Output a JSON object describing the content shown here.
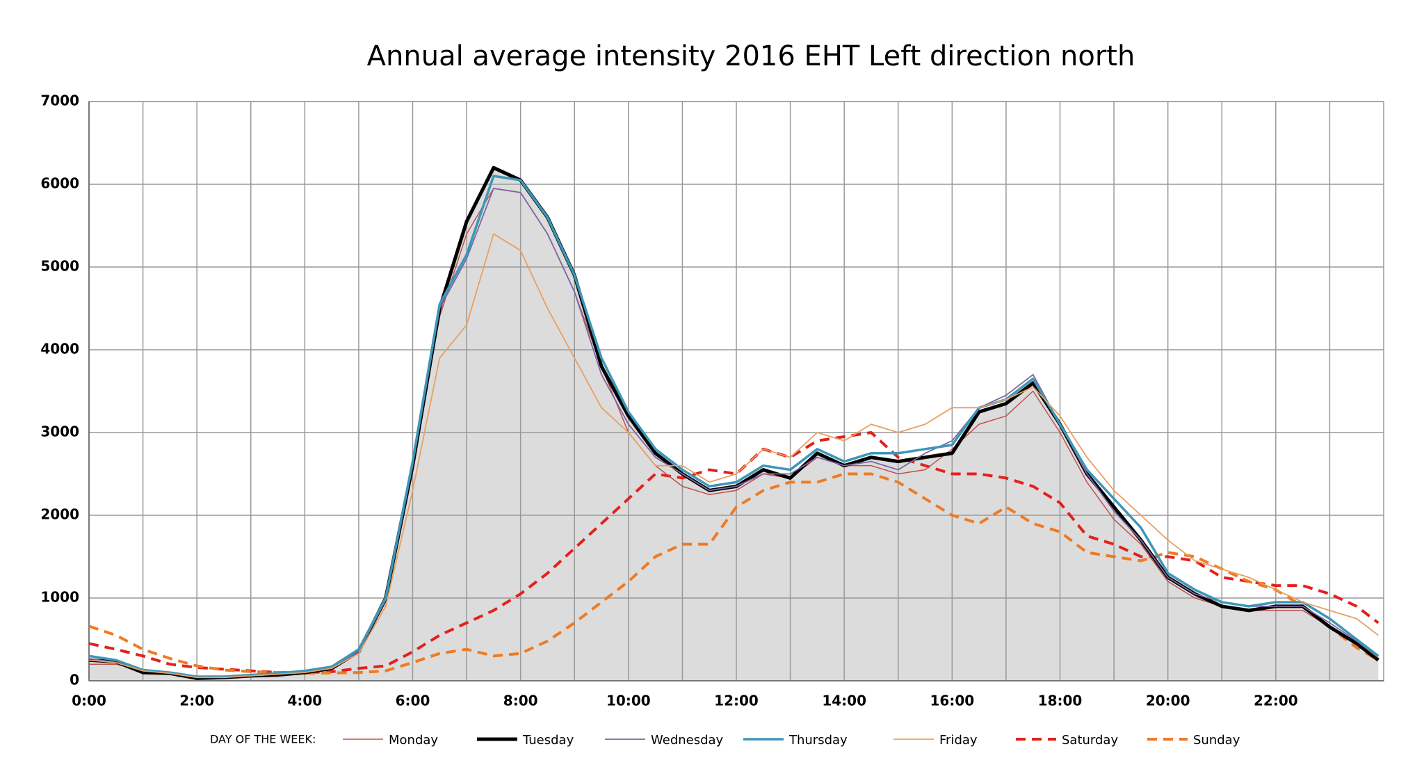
{
  "chart_data": {
    "type": "line",
    "title": "Annual average intensity 2016 EHT Left direction north",
    "legend_title": "DAY OF THE WEEK:",
    "legend": "bottom",
    "grid": true,
    "xlim": [
      0,
      24
    ],
    "ylim": [
      0,
      7000
    ],
    "yticks": [
      0,
      1000,
      2000,
      3000,
      4000,
      5000,
      6000,
      7000
    ],
    "xticks": [
      {
        "value": 0,
        "label": "0:00"
      },
      {
        "value": 2,
        "label": "2:00"
      },
      {
        "value": 4,
        "label": "4:00"
      },
      {
        "value": 6,
        "label": "6:00"
      },
      {
        "value": 8,
        "label": "8:00"
      },
      {
        "value": 10,
        "label": "10:00"
      },
      {
        "value": 12,
        "label": "12:00"
      },
      {
        "value": 14,
        "label": "14:00"
      },
      {
        "value": 16,
        "label": "16:00"
      },
      {
        "value": 18,
        "label": "18:00"
      },
      {
        "value": 20,
        "label": "20:00"
      },
      {
        "value": 22,
        "label": "22:00"
      }
    ],
    "xgrid": [
      1,
      3,
      5,
      7,
      9,
      11,
      13,
      15,
      17,
      19,
      21,
      23
    ],
    "x": [
      0,
      0.5,
      1,
      1.5,
      2,
      2.5,
      3,
      3.5,
      4,
      4.5,
      5,
      5.5,
      6,
      6.5,
      7,
      7.5,
      8,
      8.5,
      9,
      9.5,
      10,
      10.5,
      11,
      11.5,
      12,
      12.5,
      13,
      13.5,
      14,
      14.5,
      15,
      15.5,
      16,
      16.5,
      17,
      17.5,
      18,
      18.5,
      19,
      19.5,
      20,
      20.5,
      21,
      21.5,
      22,
      22.5,
      23,
      23.5,
      23.9
    ],
    "series": [
      {
        "name": "Monday",
        "color": "#c0504d",
        "width": 1.5,
        "dash": false,
        "values": [
          200,
          200,
          120,
          90,
          40,
          40,
          60,
          80,
          100,
          160,
          350,
          950,
          2600,
          4400,
          5400,
          5950,
          5900,
          5400,
          4700,
          3800,
          3000,
          2600,
          2350,
          2250,
          2300,
          2500,
          2450,
          2700,
          2600,
          2600,
          2500,
          2550,
          2800,
          3100,
          3200,
          3500,
          3000,
          2400,
          1950,
          1650,
          1200,
          1000,
          900,
          850,
          850,
          850,
          650,
          450,
          250
        ]
      },
      {
        "name": "Tuesday",
        "color": "#000000",
        "width": 5,
        "dash": false,
        "area": "#dcdcdc",
        "values": [
          250,
          230,
          100,
          90,
          30,
          40,
          60,
          70,
          100,
          150,
          350,
          1000,
          2600,
          4500,
          5550,
          6200,
          6050,
          5600,
          4900,
          3800,
          3200,
          2750,
          2500,
          2300,
          2350,
          2550,
          2450,
          2750,
          2600,
          2700,
          2650,
          2700,
          2750,
          3250,
          3350,
          3600,
          3100,
          2500,
          2100,
          1700,
          1250,
          1050,
          900,
          850,
          900,
          900,
          650,
          450,
          250
        ]
      },
      {
        "name": "Wednesday",
        "color": "#8064a2",
        "width": 1.8,
        "dash": false,
        "values": [
          270,
          220,
          120,
          90,
          40,
          40,
          60,
          80,
          110,
          160,
          350,
          980,
          2600,
          4500,
          5100,
          5950,
          5900,
          5400,
          4700,
          3700,
          3100,
          2700,
          2500,
          2300,
          2350,
          2500,
          2500,
          2700,
          2600,
          2650,
          2550,
          2750,
          2900,
          3300,
          3450,
          3700,
          3100,
          2500,
          2050,
          1700,
          1250,
          1050,
          950,
          900,
          900,
          900,
          700,
          480,
          280
        ]
      },
      {
        "name": "Thursday",
        "color": "#3d97b8",
        "width": 3.5,
        "dash": false,
        "values": [
          300,
          250,
          130,
          100,
          50,
          50,
          70,
          90,
          120,
          170,
          380,
          1000,
          2650,
          4550,
          5150,
          6100,
          6050,
          5600,
          4900,
          3900,
          3250,
          2800,
          2550,
          2350,
          2400,
          2600,
          2550,
          2800,
          2650,
          2750,
          2750,
          2800,
          2850,
          3300,
          3400,
          3650,
          3100,
          2550,
          2200,
          1850,
          1300,
          1100,
          950,
          900,
          950,
          950,
          750,
          500,
          300
        ]
      },
      {
        "name": "Friday",
        "color": "#e8a060",
        "width": 1.8,
        "dash": false,
        "values": [
          250,
          220,
          120,
          90,
          40,
          40,
          60,
          80,
          100,
          150,
          330,
          900,
          2300,
          3900,
          4300,
          5400,
          5200,
          4500,
          3900,
          3300,
          3000,
          2600,
          2600,
          2400,
          2500,
          2800,
          2700,
          3000,
          2900,
          3100,
          3000,
          3100,
          3300,
          3300,
          3400,
          3550,
          3200,
          2700,
          2300,
          2000,
          1700,
          1450,
          1350,
          1250,
          1100,
          950,
          850,
          750,
          550
        ]
      },
      {
        "name": "Saturday",
        "color": "#e3211c",
        "width": 4,
        "dash": true,
        "values": [
          450,
          380,
          300,
          200,
          160,
          140,
          120,
          100,
          100,
          110,
          150,
          180,
          350,
          550,
          700,
          850,
          1050,
          1300,
          1600,
          1900,
          2200,
          2500,
          2450,
          2550,
          2500,
          2800,
          2700,
          2900,
          2950,
          3000,
          2700,
          2600,
          2500,
          2500,
          2450,
          2350,
          2150,
          1750,
          1650,
          1500,
          1500,
          1450,
          1250,
          1200,
          1150,
          1150,
          1050,
          900,
          700
        ]
      },
      {
        "name": "Sunday",
        "color": "#f07a22",
        "width": 4,
        "dash": true,
        "values": [
          660,
          550,
          380,
          270,
          180,
          130,
          110,
          100,
          90,
          95,
          100,
          120,
          220,
          330,
          380,
          300,
          330,
          480,
          700,
          950,
          1200,
          1500,
          1650,
          1650,
          2100,
          2300,
          2400,
          2400,
          2500,
          2500,
          2400,
          2200,
          2000,
          1900,
          2100,
          1900,
          1800,
          1550,
          1500,
          1450,
          1550,
          1500,
          1350,
          1200,
          1100,
          900,
          650,
          400,
          250
        ]
      }
    ]
  }
}
